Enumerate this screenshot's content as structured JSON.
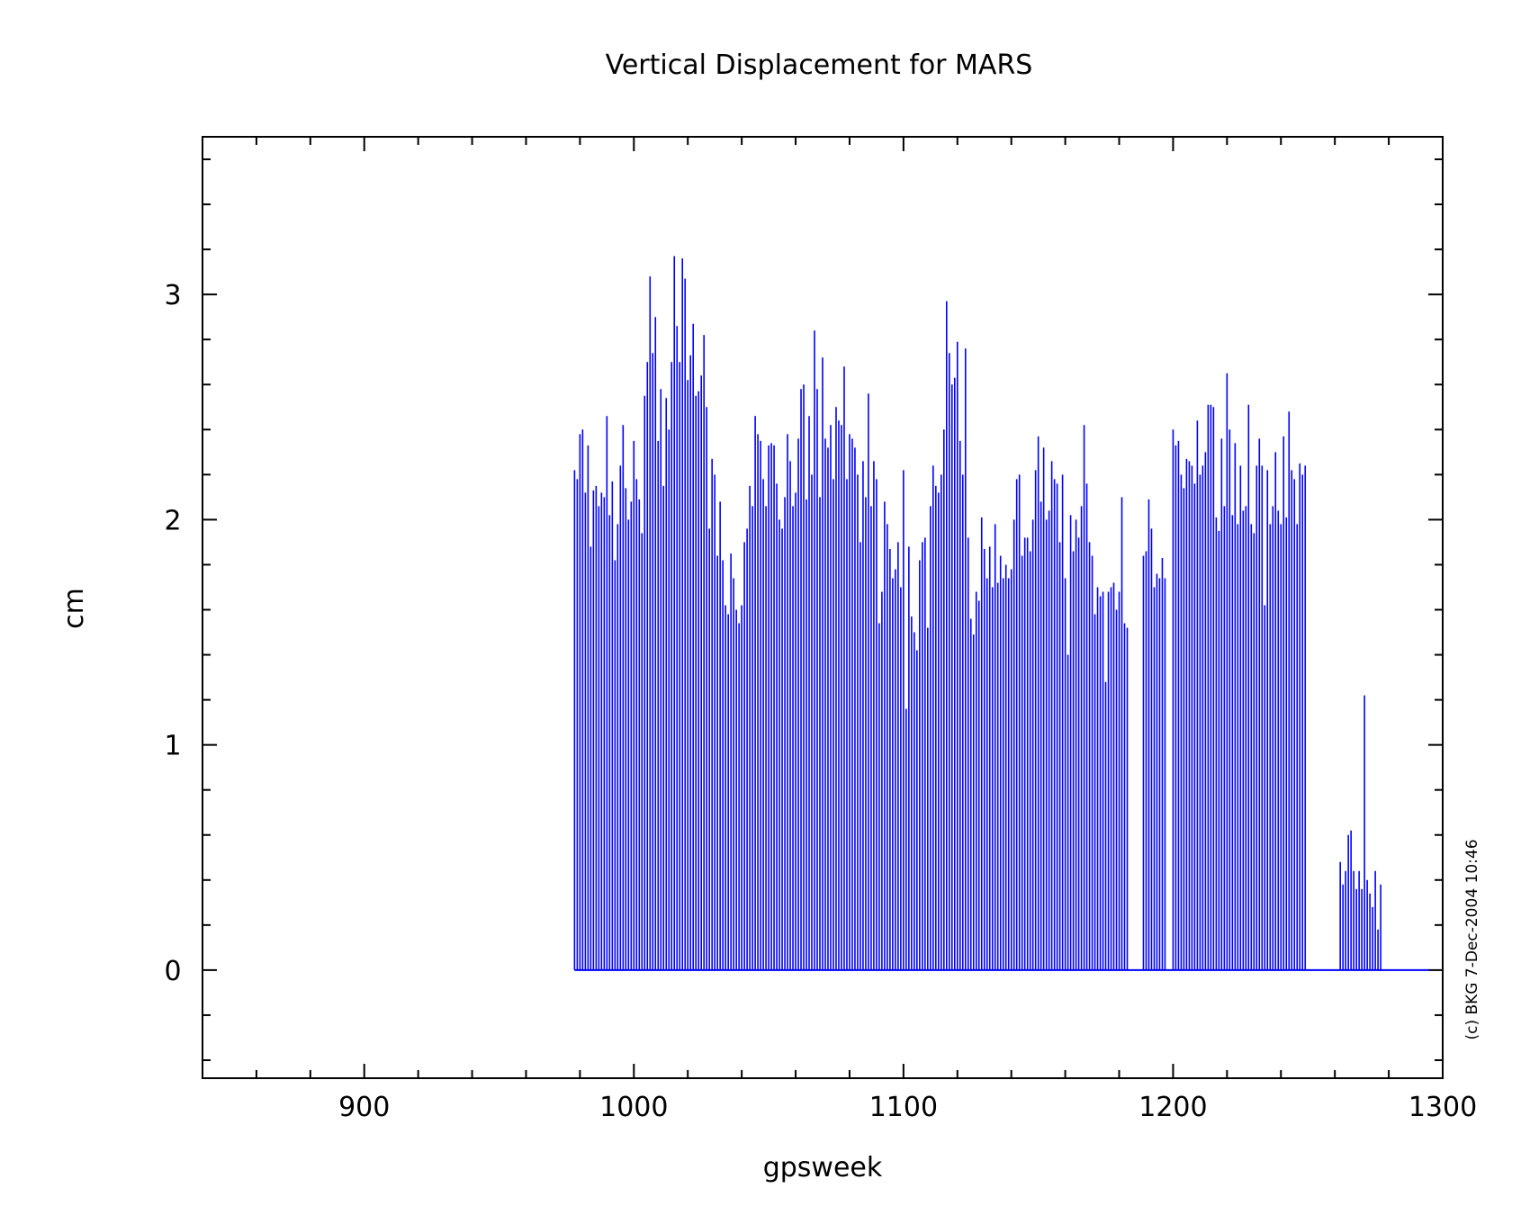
{
  "chart_data": {
    "type": "bar",
    "title": "Vertical Displacement for MARS",
    "xlabel": "gpsweek",
    "ylabel": "cm",
    "xlim": [
      840,
      1300
    ],
    "ylim": [
      -0.48,
      3.7
    ],
    "xticks": [
      900,
      1000,
      1100,
      1200,
      1300
    ],
    "yticks": [
      0,
      1,
      2,
      3
    ],
    "grid": false,
    "color": "#0000ff",
    "credit": "(c) BKG 7-Dec-2004 10:46",
    "baseline": {
      "from": 978,
      "to": 1295,
      "y": 0
    },
    "series": [
      {
        "x0": 978,
        "step": 1,
        "values": [
          2.22,
          2.18,
          2.38,
          2.4,
          2.12,
          2.33,
          1.88,
          2.13,
          2.15,
          2.06,
          2.12,
          2.1,
          2.46,
          2.02,
          2.17,
          1.82,
          1.98,
          2.24,
          2.42,
          2.14,
          2.0,
          2.08,
          2.35,
          2.18,
          2.09,
          1.94,
          2.55,
          2.7,
          3.08,
          2.74,
          2.9,
          2.35,
          2.58,
          2.15,
          2.54,
          2.4,
          2.7,
          3.17,
          2.86,
          2.7,
          3.16,
          3.07,
          2.62,
          2.73,
          2.87,
          2.55,
          2.57,
          2.64,
          2.82,
          2.5,
          1.96,
          2.27,
          2.2,
          1.84,
          2.08,
          1.82,
          1.62,
          1.58,
          1.85,
          1.74,
          1.6,
          1.54,
          1.62,
          1.9,
          1.96,
          2.15,
          2.06,
          2.46,
          2.38,
          2.35,
          2.18,
          2.06,
          2.33,
          2.34,
          2.33,
          2.16,
          2.0,
          1.96,
          2.1,
          2.38,
          2.26,
          2.06,
          2.12,
          2.36,
          2.58,
          2.6,
          2.09,
          2.46,
          2.2,
          2.84,
          2.58,
          2.1,
          2.72,
          2.36,
          2.32,
          2.42,
          2.18,
          2.5,
          2.44,
          2.42,
          2.68,
          2.18,
          2.38,
          2.36,
          2.32,
          2.2,
          1.9,
          2.26,
          2.1,
          2.56,
          2.06,
          2.26,
          2.18,
          1.54,
          1.68,
          2.08,
          1.98,
          1.87,
          1.74,
          1.78,
          1.9,
          1.7,
          2.22,
          1.16,
          1.88,
          1.57,
          1.5,
          1.42,
          1.82,
          1.9,
          1.92,
          1.52,
          2.06,
          2.24,
          2.15,
          2.12,
          2.2,
          2.4,
          2.97,
          2.74,
          2.6,
          2.63,
          2.79,
          2.35,
          2.2,
          2.76,
          1.92,
          1.56,
          1.49,
          1.68,
          1.64,
          2.01,
          1.87,
          1.74,
          1.88,
          1.7,
          1.98,
          1.72,
          1.84,
          1.74,
          1.8,
          1.74,
          1.78,
          2.0,
          2.18,
          2.2,
          1.84,
          1.92,
          1.92,
          1.86,
          2.0,
          2.22,
          2.37,
          2.08,
          2.32,
          2.0,
          2.04,
          2.26,
          2.18,
          2.16,
          1.9,
          2.2,
          1.74,
          1.4,
          2.02,
          1.86,
          2.0,
          1.92,
          2.06,
          2.42,
          2.16,
          1.9,
          1.84,
          1.58,
          1.7,
          1.66,
          1.68,
          1.28,
          1.68,
          1.7,
          1.72,
          1.6,
          1.68,
          2.1,
          1.54,
          1.52,
          0,
          0,
          0,
          0,
          0,
          1.84,
          1.86,
          2.09,
          1.96,
          1.7,
          1.76,
          1.74,
          1.83,
          1.74,
          0,
          0,
          2.4,
          2.33,
          2.35,
          2.2,
          2.14,
          2.27,
          2.26,
          2.24,
          2.16,
          2.44,
          2.2,
          2.24,
          2.3,
          2.51,
          2.51,
          2.5,
          2.01,
          1.95,
          2.36,
          2.06,
          2.65,
          2.4,
          2.02,
          2.34,
          1.98,
          2.24,
          2.04,
          2.06,
          2.51,
          1.98,
          1.94,
          2.24,
          2.36,
          2.24,
          1.62,
          2.22,
          1.98,
          2.06,
          2.3,
          2.04,
          1.98,
          2.37,
          2.01,
          2.48,
          2.22,
          2.18,
          1.98,
          2.25,
          2.2,
          2.24,
          0,
          0,
          0,
          0,
          0,
          0,
          0,
          0,
          0,
          0,
          0,
          0,
          0.48,
          0.38,
          0.44,
          0.6,
          0.62,
          0.44,
          0.36,
          0.44,
          0.36,
          1.22,
          0.4,
          0.34,
          0.28,
          0.44,
          0.18,
          0.38
        ]
      }
    ]
  }
}
